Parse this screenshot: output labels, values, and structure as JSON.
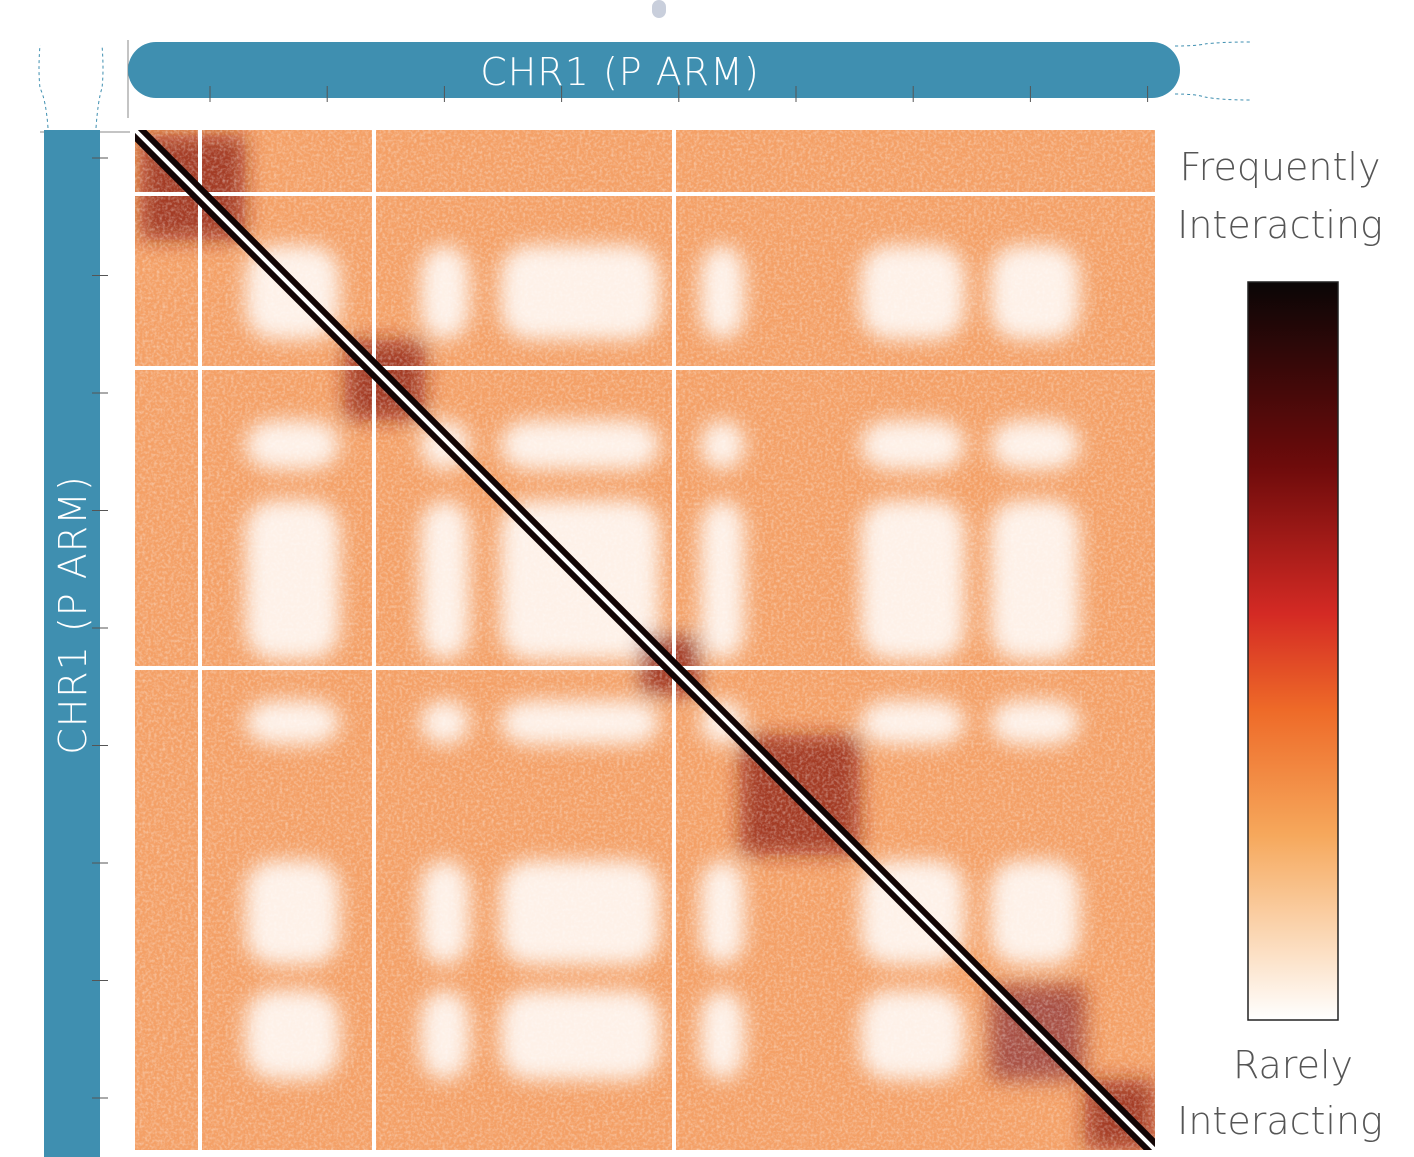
{
  "top_label": "CHR1 (P ARM)",
  "left_label": "CHR1 (P ARM)",
  "legend": {
    "high": [
      "Frequently",
      "Interacting"
    ],
    "low": [
      "Rarely",
      "Interacting"
    ]
  }
}
